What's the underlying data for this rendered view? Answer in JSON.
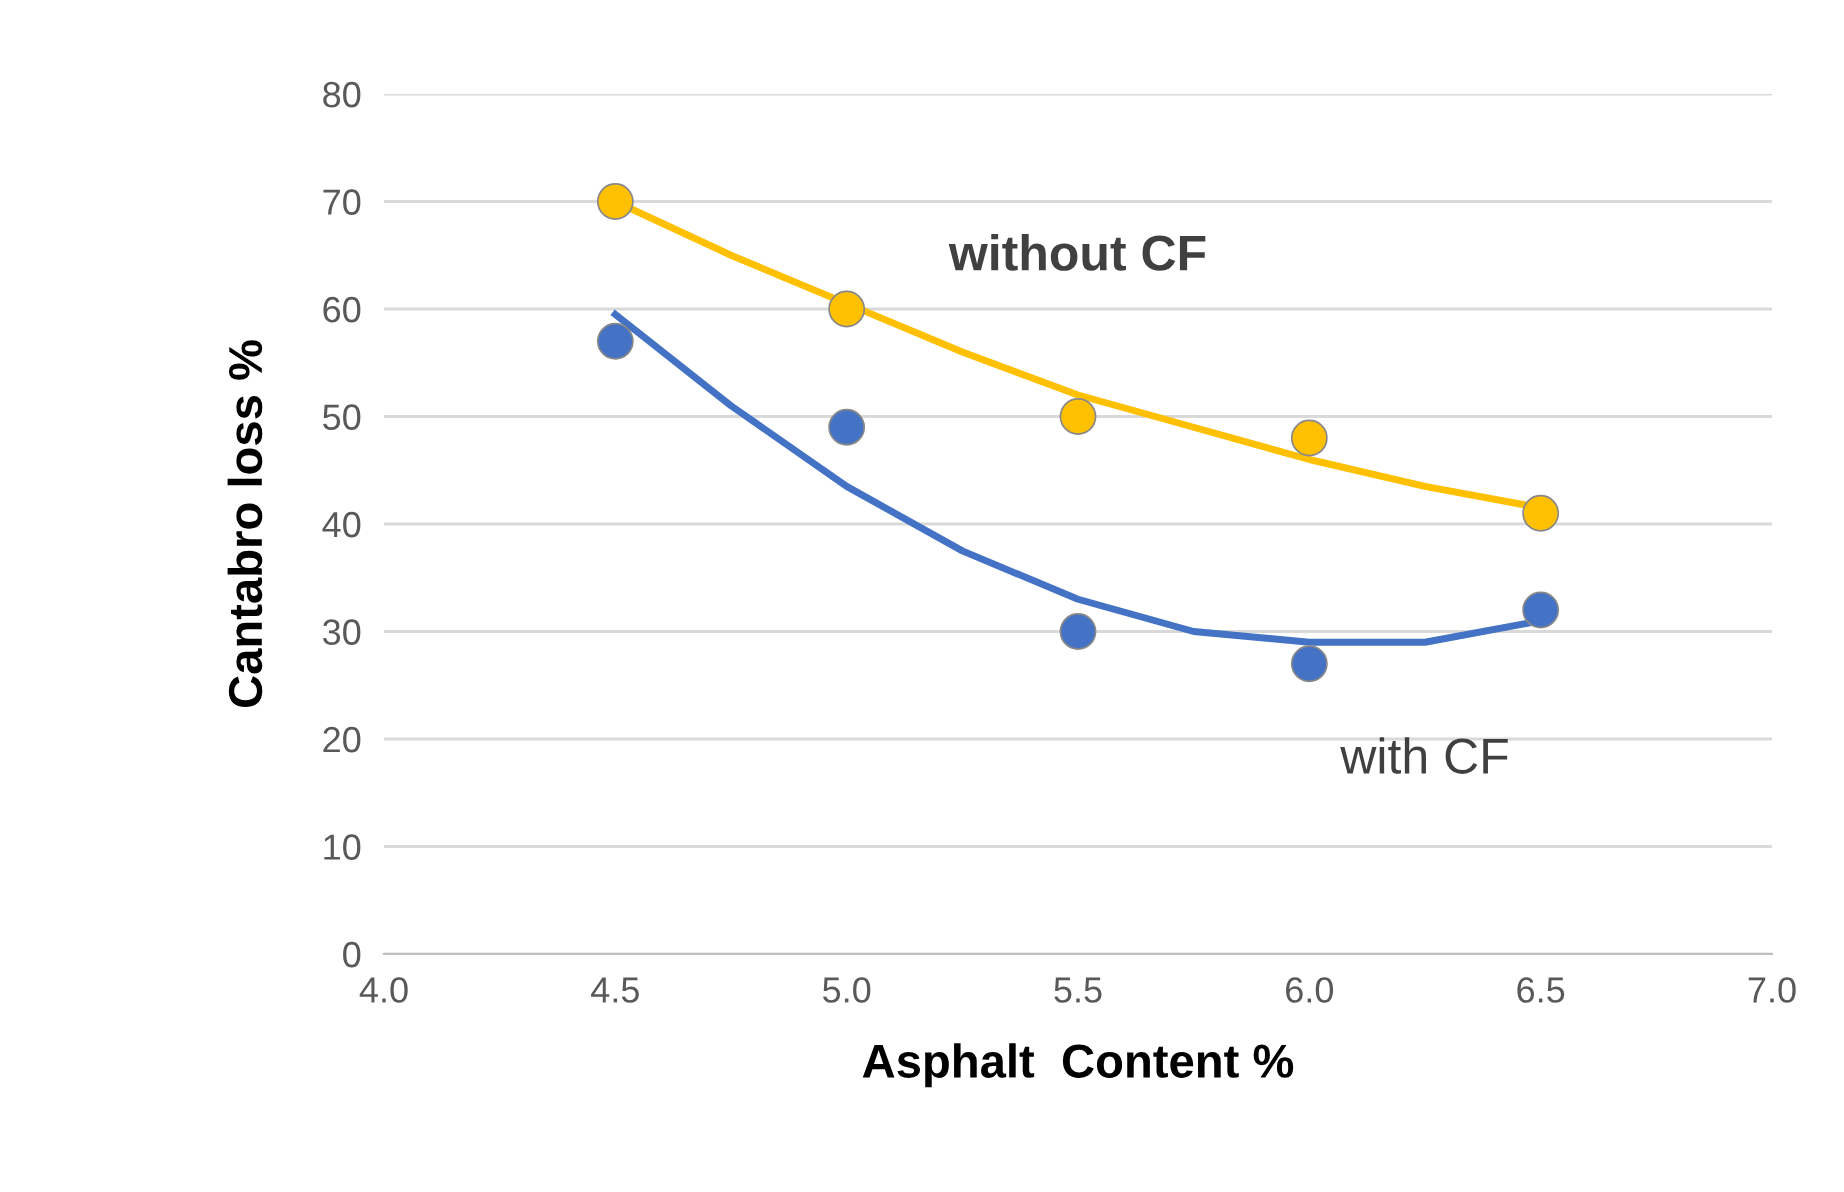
{
  "chart_data": {
    "type": "scatter",
    "xlabel": "Asphalt  Content %",
    "ylabel": "Cantabro loss %",
    "xlim": [
      4.0,
      7.0
    ],
    "xticks": [
      {
        "value": 4.0,
        "label": "4.0"
      },
      {
        "value": 4.5,
        "label": "4.5"
      },
      {
        "value": 5.0,
        "label": "5.0"
      },
      {
        "value": 5.5,
        "label": "5.5"
      },
      {
        "value": 6.0,
        "label": "6.0"
      },
      {
        "value": 6.5,
        "label": "6.5"
      },
      {
        "value": 7.0,
        "label": "7.0"
      }
    ],
    "ylim": [
      0,
      80
    ],
    "yticks": [
      0,
      10,
      20,
      30,
      40,
      50,
      60,
      70,
      80
    ],
    "grid": "y",
    "series": [
      {
        "type": "line",
        "color": "#FFC000",
        "x": [
          4.5,
          4.75,
          5.0,
          5.25,
          5.5,
          5.75,
          6.0,
          6.25,
          6.5
        ],
        "values": [
          70,
          65,
          60.5,
          56,
          52,
          49,
          46,
          43.5,
          41.5
        ]
      },
      {
        "type": "line",
        "color": "#4472C4",
        "x": [
          4.5,
          4.75,
          5.0,
          5.25,
          5.5,
          5.75,
          6.0,
          6.25,
          6.5
        ],
        "values": [
          59.5,
          51,
          43.5,
          37.5,
          33,
          30,
          29,
          29,
          31
        ]
      },
      {
        "color": "#FFC000",
        "marker": "circle",
        "x": [
          4.5,
          5.0,
          5.5,
          6.0,
          6.5
        ],
        "values": [
          70,
          60,
          50,
          48,
          41
        ]
      },
      {
        "color": "#4472C4",
        "marker": "circle",
        "x": [
          4.5,
          5.0,
          5.5,
          6.0,
          6.5
        ],
        "values": [
          57,
          49,
          30,
          27,
          32
        ]
      }
    ],
    "annotations": [
      "without CF",
      "with CF"
    ]
  }
}
